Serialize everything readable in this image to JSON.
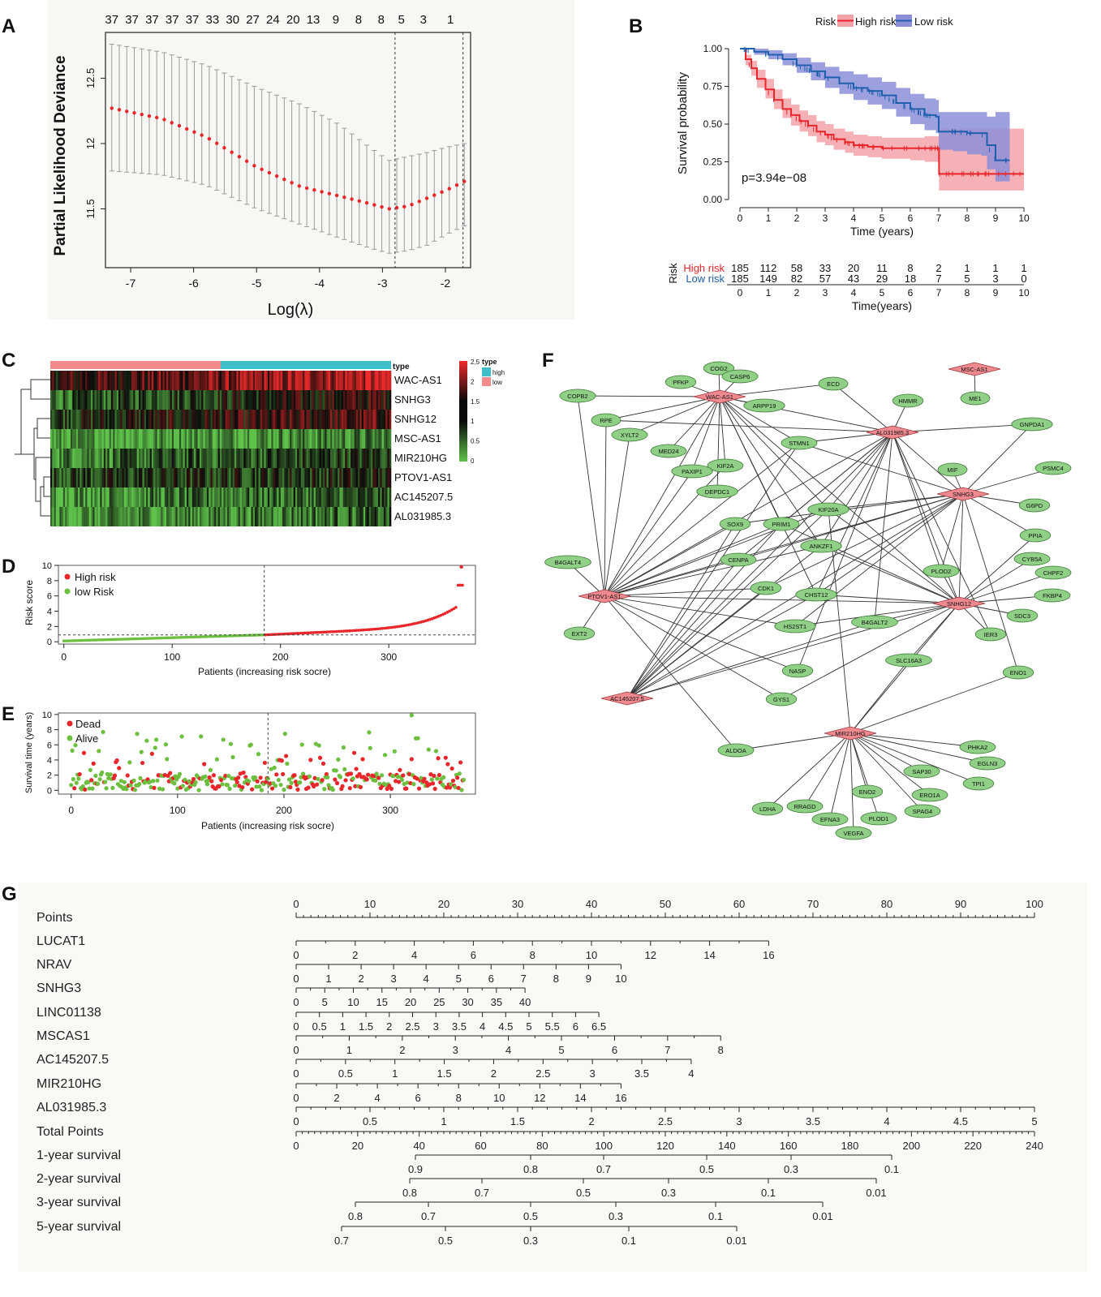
{
  "panels": {
    "a": "A",
    "b": "B",
    "c": "C",
    "d": "D",
    "e": "E",
    "f": "F",
    "g": "G"
  },
  "chart_data": [
    {
      "id": "A",
      "type": "line",
      "ylabel": "Partial Likelihood Deviance",
      "xlabel": "Log(λ)",
      "xlim": [
        -7.4,
        -1.6
      ],
      "ylim": [
        11.05,
        12.85
      ],
      "xticks": [
        -7,
        -6,
        -5,
        -4,
        -3,
        -2
      ],
      "yticks": [
        11.5,
        12.0,
        12.5
      ],
      "top_labels": [
        "37",
        "37",
        "37",
        "37",
        "37",
        "33",
        "30",
        "27",
        "24",
        "20",
        "13",
        "9",
        "8",
        "8",
        "5",
        "3",
        "1"
      ],
      "top_label_x": [
        -7.3,
        -6.98,
        -6.66,
        -6.34,
        -6.02,
        -5.7,
        -5.38,
        -5.06,
        -4.74,
        -4.42,
        -4.1,
        -3.74,
        -3.38,
        -3.02,
        -2.7,
        -2.35,
        -1.92
      ],
      "curve": {
        "x": [
          -7.3,
          -6.5,
          -5.8,
          -5.0,
          -4.3,
          -3.7,
          -3.2,
          -2.9,
          -2.6,
          -2.3,
          -2.0,
          -1.7
        ],
        "y": [
          12.27,
          12.19,
          12.05,
          11.82,
          11.67,
          11.6,
          11.54,
          11.5,
          11.52,
          11.58,
          11.64,
          11.71
        ],
        "se_upper": [
          12.76,
          12.7,
          12.6,
          12.43,
          12.3,
          12.15,
          11.97,
          11.87,
          11.9,
          11.93,
          11.97,
          12.0
        ],
        "se_lower": [
          11.79,
          11.76,
          11.68,
          11.5,
          11.38,
          11.28,
          11.2,
          11.16,
          11.18,
          11.22,
          11.3,
          11.37
        ]
      },
      "vlines": [
        -2.8,
        -1.72
      ]
    },
    {
      "id": "B",
      "type": "line",
      "ylabel": "Survival probability",
      "xlabel": "Time (years)",
      "legend_title": "Risk",
      "legend": [
        "High risk",
        "Low risk"
      ],
      "pvalue": "p=3.94e−08",
      "xlim": [
        0,
        10
      ],
      "ylim": [
        0,
        1
      ],
      "xticks": [
        0,
        1,
        2,
        3,
        4,
        5,
        6,
        7,
        8,
        9,
        10
      ],
      "yticks": [
        "0.00",
        "0.25",
        "0.50",
        "0.75",
        "1.00"
      ],
      "series": [
        {
          "name": "High risk",
          "color": "#e8262b",
          "band": "#f4a3aa",
          "x": [
            0,
            0.2,
            0.4,
            0.6,
            0.9,
            1.2,
            1.5,
            1.8,
            2.1,
            2.4,
            2.7,
            3.0,
            3.3,
            3.7,
            4.0,
            4.5,
            5.0,
            5.5,
            6.0,
            6.5,
            7.0,
            7.01,
            10
          ],
          "y": [
            1.0,
            0.93,
            0.87,
            0.8,
            0.73,
            0.66,
            0.6,
            0.56,
            0.52,
            0.49,
            0.45,
            0.43,
            0.4,
            0.38,
            0.36,
            0.35,
            0.34,
            0.34,
            0.34,
            0.34,
            0.34,
            0.17,
            0.17
          ],
          "lower": [
            1.0,
            0.89,
            0.82,
            0.74,
            0.67,
            0.6,
            0.54,
            0.49,
            0.45,
            0.42,
            0.38,
            0.36,
            0.33,
            0.31,
            0.29,
            0.28,
            0.27,
            0.27,
            0.26,
            0.25,
            0.25,
            0.06,
            0.06
          ],
          "upper": [
            1.0,
            0.96,
            0.92,
            0.86,
            0.8,
            0.73,
            0.67,
            0.63,
            0.59,
            0.56,
            0.52,
            0.5,
            0.47,
            0.45,
            0.43,
            0.42,
            0.41,
            0.41,
            0.41,
            0.42,
            0.43,
            0.47,
            0.47
          ]
        },
        {
          "name": "Low risk",
          "color": "#1f5fae",
          "band": "#8c8fd8",
          "x": [
            0,
            0.5,
            1.0,
            1.5,
            2.0,
            2.5,
            3.0,
            3.5,
            4.0,
            4.5,
            5.0,
            5.5,
            6.0,
            6.5,
            6.9,
            7.0,
            7.5,
            8.0,
            8.5,
            8.7,
            9.0,
            9.5
          ],
          "y": [
            1.0,
            0.98,
            0.96,
            0.93,
            0.89,
            0.85,
            0.81,
            0.77,
            0.74,
            0.72,
            0.69,
            0.64,
            0.6,
            0.56,
            0.55,
            0.45,
            0.45,
            0.44,
            0.44,
            0.36,
            0.26,
            0.26
          ],
          "lower": [
            1.0,
            0.96,
            0.93,
            0.89,
            0.84,
            0.79,
            0.74,
            0.7,
            0.66,
            0.63,
            0.6,
            0.55,
            0.5,
            0.46,
            0.44,
            0.33,
            0.32,
            0.3,
            0.29,
            0.2,
            0.12,
            0.12
          ],
          "upper": [
            1.0,
            1.0,
            0.99,
            0.97,
            0.94,
            0.91,
            0.88,
            0.85,
            0.83,
            0.81,
            0.78,
            0.74,
            0.7,
            0.67,
            0.66,
            0.58,
            0.58,
            0.58,
            0.58,
            0.55,
            0.58,
            0.58
          ]
        }
      ]
    },
    {
      "id": "B-risk-table",
      "type": "table",
      "row_label": "Risk",
      "xlabel": "Time(years)",
      "times": [
        "0",
        "1",
        "2",
        "3",
        "4",
        "5",
        "6",
        "7",
        "8",
        "9",
        "10"
      ],
      "rows": [
        {
          "name": "High risk",
          "color": "#e8262b",
          "values": [
            "185",
            "112",
            "58",
            "33",
            "20",
            "11",
            "8",
            "2",
            "1",
            "1",
            "1"
          ]
        },
        {
          "name": "Low risk",
          "color": "#1f5fae",
          "values": [
            "185",
            "149",
            "82",
            "57",
            "43",
            "29",
            "18",
            "7",
            "5",
            "3",
            "0"
          ]
        }
      ]
    },
    {
      "id": "C",
      "type": "heatmap",
      "genes": [
        "WAC-AS1",
        "SNHG3",
        "SNHG12",
        "MSC-AS1",
        "MIR210HG",
        "PTOV1-AS1",
        "AC145207.5",
        "AL031985.3"
      ],
      "columns": 370,
      "group_label": "type",
      "groups": [
        "low",
        "high"
      ],
      "group_colors": [
        "#f28c8c",
        "#3ebec8"
      ],
      "legend_title": "type",
      "legend_items": [
        "high",
        "low"
      ],
      "colorbar_ticks": [
        "0",
        "0.5",
        "1",
        "1.5",
        "2",
        "2.5"
      ]
    },
    {
      "id": "D",
      "type": "scatter",
      "ylabel": "Risk score",
      "xlabel": "Patients (increasing risk socre)",
      "legend": [
        "High risk",
        "low Risk"
      ],
      "colors": [
        "#e8262b",
        "#6cbf3f"
      ],
      "xlim": [
        -5,
        380
      ],
      "ylim": [
        -0.3,
        10
      ],
      "xticks": [
        0,
        100,
        200,
        300
      ],
      "yticks": [
        0,
        2,
        4,
        6,
        8,
        10
      ],
      "cutoff_x": 185,
      "cutoff_y": 0.9,
      "n": 370
    },
    {
      "id": "E",
      "type": "scatter",
      "ylabel": "Survival time (years)",
      "xlabel": "Patients (increasing risk socre)",
      "legend": [
        "Dead",
        "Alive"
      ],
      "colors": [
        "#e8262b",
        "#6cbf3f"
      ],
      "xlim": [
        -12,
        380
      ],
      "ylim": [
        -0.5,
        10.2
      ],
      "xticks": [
        0,
        100,
        200,
        300
      ],
      "yticks": [
        0,
        2,
        4,
        6,
        8,
        10
      ],
      "cutoff_x": 185
    },
    {
      "id": "F",
      "type": "network",
      "hubs": [
        "MSC-AS1",
        "WAC-AS1",
        "AL031985.3",
        "SNHG3",
        "PTOV1-AS1",
        "SNHG12",
        "AC145207.5",
        "MIR210HG"
      ],
      "nodes": [
        "COG2",
        "CASP6",
        "PFKP",
        "ECD",
        "ME1",
        "COPB2",
        "ARPP19",
        "HMMR",
        "RPE",
        "XYLT2",
        "STMN1",
        "GNPDA1",
        "MED24",
        "KIF2A",
        "PAXIP1",
        "MIF",
        "PSMC4",
        "DEPDC1",
        "G6PD",
        "SOX9",
        "PRIM1",
        "KIF20A",
        "PPIA",
        "ANKZF1",
        "B4GALT4",
        "CENPA",
        "CYB5A",
        "CHPF2",
        "PLOD2",
        "CDK1",
        "CHST12",
        "FKBP4",
        "SDC3",
        "HS2ST1",
        "B4GALT2",
        "EXT2",
        "IER3",
        "SLC16A3",
        "NASP",
        "ENO1",
        "GYS1",
        "ALDOA",
        "PHKA2",
        "EGLN3",
        "SAP30",
        "TPI1",
        "ERO1A",
        "ENO2",
        "LDHA",
        "RRAGD",
        "SPAG4",
        "EFNA3",
        "PLOD1",
        "VEGFA"
      ]
    },
    {
      "id": "G",
      "type": "table",
      "rows": [
        {
          "label": "Points",
          "ticks": [
            "0",
            "10",
            "20",
            "30",
            "40",
            "50",
            "60",
            "70",
            "80",
            "90",
            "100"
          ]
        },
        {
          "label": "LUCAT1",
          "ticks": [
            "0",
            "2",
            "4",
            "6",
            "8",
            "10",
            "12",
            "14",
            "16"
          ]
        },
        {
          "label": "NRAV",
          "ticks": [
            "0",
            "1",
            "2",
            "3",
            "4",
            "5",
            "6",
            "7",
            "8",
            "9",
            "10"
          ]
        },
        {
          "label": "SNHG3",
          "ticks": [
            "0",
            "5",
            "10",
            "15",
            "20",
            "25",
            "30",
            "35",
            "40"
          ]
        },
        {
          "label": "LINC01138",
          "ticks": [
            "0",
            "0.5",
            "1",
            "1.5",
            "2",
            "2.5",
            "3",
            "3.5",
            "4",
            "4.5",
            "5",
            "5.5",
            "6",
            "6.5"
          ]
        },
        {
          "label": "MSCAS1",
          "ticks": [
            "0",
            "1",
            "2",
            "3",
            "4",
            "5",
            "6",
            "7",
            "8"
          ]
        },
        {
          "label": "AC145207.5",
          "ticks": [
            "0",
            "0.5",
            "1",
            "1.5",
            "2",
            "2.5",
            "3",
            "3.5",
            "4"
          ]
        },
        {
          "label": "MIR210HG",
          "ticks": [
            "0",
            "2",
            "4",
            "6",
            "8",
            "10",
            "12",
            "14",
            "16"
          ]
        },
        {
          "label": "AL031985.3",
          "ticks": [
            "0",
            "0.5",
            "1",
            "1.5",
            "2",
            "2.5",
            "3",
            "3.5",
            "4",
            "4.5",
            "5"
          ]
        },
        {
          "label": "Total Points",
          "ticks": [
            "0",
            "20",
            "40",
            "60",
            "80",
            "100",
            "120",
            "140",
            "160",
            "180",
            "200",
            "220",
            "240"
          ]
        },
        {
          "label": "1-year survival",
          "ticks": [
            "0.9",
            "0.8",
            "0.7",
            "0.5",
            "0.3",
            "0.1"
          ]
        },
        {
          "label": "2-year survival",
          "ticks": [
            "0.8",
            "0.7",
            "0.5",
            "0.3",
            "0.1",
            "0.01"
          ]
        },
        {
          "label": "3-year survival",
          "ticks": [
            "0.8",
            "0.7",
            "0.5",
            "0.3",
            "0.1",
            "0.01"
          ]
        },
        {
          "label": "5-year survival",
          "ticks": [
            "0.7",
            "0.5",
            "0.3",
            "0.1",
            "0.01"
          ]
        }
      ]
    }
  ]
}
